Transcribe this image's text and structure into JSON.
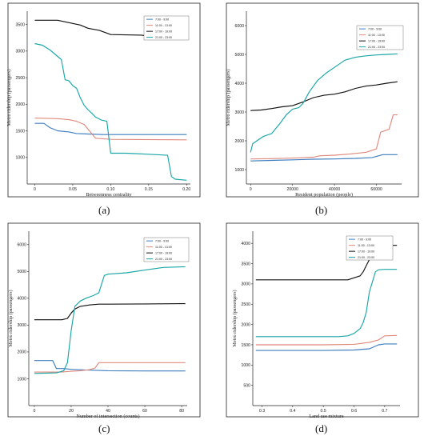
{
  "panel_letters": [
    "(a)",
    "(b)",
    "(c)",
    "(d)"
  ],
  "legend": [
    "7:00 - 9:00",
    "11:00 - 13:00",
    "17:00 - 19:00",
    "21:00 - 23:00"
  ],
  "colors": {
    "7:00 - 9:00": "#3f7fc0",
    "11:00 - 13:00": "#e08a7e",
    "17:00 - 19:00": "#111111",
    "21:00 - 23:00": "#1aa6a6"
  },
  "chart_data": [
    {
      "type": "line",
      "xlabel": "Betweenness centrality",
      "ylabel": "Metro ridership (passengers)",
      "xlim": [
        -0.01,
        0.205
      ],
      "ylim": [
        500,
        3750
      ],
      "xticks": [
        0,
        0.05,
        0.1,
        0.15,
        0.2
      ],
      "xtick_labels": [
        "0",
        "0.05",
        "0.10",
        "0.15",
        "0.20"
      ],
      "yticks": [
        1000,
        1500,
        2000,
        2500,
        3000,
        3500
      ],
      "series": [
        {
          "name": "7:00 - 9:00",
          "x": [
            0,
            0.012,
            0.02,
            0.03,
            0.045,
            0.055,
            0.07,
            0.09,
            0.12,
            0.2
          ],
          "y": [
            1640,
            1640,
            1560,
            1500,
            1480,
            1450,
            1440,
            1430,
            1430,
            1430
          ]
        },
        {
          "name": "11:00 - 13:00",
          "x": [
            0,
            0.03,
            0.045,
            0.055,
            0.06,
            0.065,
            0.08,
            0.1,
            0.2
          ],
          "y": [
            1740,
            1730,
            1710,
            1680,
            1650,
            1620,
            1360,
            1340,
            1330
          ]
        },
        {
          "name": "17:00 - 19:00",
          "x": [
            0,
            0.03,
            0.05,
            0.06,
            0.07,
            0.085,
            0.1,
            0.14,
            0.16,
            0.2
          ],
          "y": [
            3580,
            3580,
            3520,
            3490,
            3430,
            3390,
            3310,
            3300,
            3270,
            3270
          ]
        },
        {
          "name": "21:00 - 23:00",
          "x": [
            0,
            0.01,
            0.02,
            0.03,
            0.035,
            0.04,
            0.045,
            0.05,
            0.055,
            0.06,
            0.065,
            0.07,
            0.075,
            0.08,
            0.088,
            0.095,
            0.1,
            0.12,
            0.15,
            0.175,
            0.18,
            0.185,
            0.2
          ],
          "y": [
            3140,
            3110,
            3020,
            2900,
            2840,
            2460,
            2440,
            2350,
            2300,
            2120,
            1980,
            1900,
            1830,
            1760,
            1700,
            1680,
            1080,
            1080,
            1060,
            1040,
            640,
            590,
            570
          ]
        }
      ]
    },
    {
      "type": "line",
      "xlabel": "Resident population (people)",
      "ylabel": "Metro ridership (passengers)",
      "xlim": [
        -2000,
        72000
      ],
      "ylim": [
        500,
        6500
      ],
      "xticks": [
        0,
        20000,
        40000,
        60000
      ],
      "yticks": [
        1000,
        2000,
        3000,
        4000,
        5000,
        6000
      ],
      "series": [
        {
          "name": "7:00 - 9:00",
          "x": [
            0,
            10000,
            20000,
            30000,
            40000,
            50000,
            58000,
            63000,
            70000
          ],
          "y": [
            1300,
            1320,
            1340,
            1360,
            1370,
            1390,
            1420,
            1520,
            1520
          ]
        },
        {
          "name": "11:00 - 13:00",
          "x": [
            0,
            10000,
            20000,
            30000,
            33000,
            40000,
            47000,
            55000,
            60000,
            62000,
            64000,
            66000,
            68000,
            70000
          ],
          "y": [
            1370,
            1380,
            1400,
            1430,
            1480,
            1500,
            1540,
            1600,
            1720,
            2300,
            2350,
            2400,
            2900,
            2900
          ]
        },
        {
          "name": "17:00 - 19:00",
          "x": [
            0,
            5000,
            10000,
            15000,
            20000,
            25000,
            30000,
            35000,
            40000,
            45000,
            50000,
            55000,
            60000,
            65000,
            70000
          ],
          "y": [
            3050,
            3070,
            3120,
            3180,
            3220,
            3350,
            3500,
            3580,
            3620,
            3700,
            3820,
            3900,
            3940,
            4000,
            4050
          ]
        },
        {
          "name": "21:00 - 23:00",
          "x": [
            0,
            1000,
            3000,
            6000,
            10000,
            14000,
            17000,
            20000,
            23000,
            25000,
            28000,
            32000,
            36000,
            40000,
            45000,
            50000,
            55000,
            60000,
            65000,
            70000
          ],
          "y": [
            1600,
            1900,
            2000,
            2150,
            2250,
            2600,
            2900,
            3100,
            3150,
            3300,
            3700,
            4100,
            4350,
            4550,
            4800,
            4900,
            4950,
            4980,
            5000,
            5020
          ]
        }
      ]
    },
    {
      "type": "line",
      "xlabel": "Number of intersection (counts)",
      "ylabel": "Metro ridership (passengers)",
      "xlim": [
        -3,
        83
      ],
      "ylim": [
        0,
        6500
      ],
      "xticks": [
        0,
        20,
        40,
        60,
        80
      ],
      "yticks": [
        1000,
        2000,
        3000,
        4000,
        5000,
        6000
      ],
      "series": [
        {
          "name": "7:00 - 9:00",
          "x": [
            0,
            10,
            12,
            16,
            20,
            30,
            40,
            60,
            80,
            82
          ],
          "y": [
            1680,
            1680,
            1380,
            1380,
            1350,
            1320,
            1300,
            1290,
            1290,
            1290
          ]
        },
        {
          "name": "11:00 - 13:00",
          "x": [
            0,
            15,
            20,
            25,
            30,
            33,
            35,
            40,
            60,
            80,
            82
          ],
          "y": [
            1250,
            1250,
            1280,
            1300,
            1340,
            1400,
            1600,
            1600,
            1600,
            1600,
            1600
          ]
        },
        {
          "name": "17:00 - 19:00",
          "x": [
            0,
            15,
            18,
            20,
            22,
            25,
            30,
            35,
            40,
            60,
            80,
            82
          ],
          "y": [
            3200,
            3200,
            3250,
            3450,
            3600,
            3700,
            3750,
            3780,
            3780,
            3790,
            3800,
            3800
          ]
        },
        {
          "name": "21:00 - 23:00",
          "x": [
            0,
            12,
            16,
            18,
            20,
            22,
            25,
            28,
            32,
            35,
            38,
            40,
            50,
            60,
            70,
            80,
            82
          ],
          "y": [
            1200,
            1220,
            1300,
            1600,
            2800,
            3700,
            3900,
            4000,
            4100,
            4200,
            4850,
            4900,
            4950,
            5050,
            5150,
            5170,
            5170
          ]
        }
      ]
    },
    {
      "type": "line",
      "xlabel": "Land use mixture",
      "ylabel": "Metro ridership (passengers)",
      "xlim": [
        0.27,
        0.75
      ],
      "ylim": [
        0,
        4300
      ],
      "xticks": [
        0.3,
        0.4,
        0.5,
        0.6,
        0.7
      ],
      "yticks": [
        500,
        1000,
        1500,
        2000,
        2500,
        3000,
        3500,
        4000
      ],
      "series": [
        {
          "name": "7:00 - 9:00",
          "x": [
            0.28,
            0.4,
            0.5,
            0.6,
            0.65,
            0.68,
            0.7,
            0.74
          ],
          "y": [
            1360,
            1360,
            1360,
            1370,
            1400,
            1500,
            1520,
            1520
          ]
        },
        {
          "name": "11:00 - 13:00",
          "x": [
            0.28,
            0.4,
            0.5,
            0.6,
            0.65,
            0.68,
            0.7,
            0.74
          ],
          "y": [
            1500,
            1500,
            1500,
            1510,
            1560,
            1620,
            1720,
            1730
          ]
        },
        {
          "name": "17:00 - 19:00",
          "x": [
            0.28,
            0.4,
            0.5,
            0.58,
            0.6,
            0.62,
            0.63,
            0.64,
            0.65,
            0.66,
            0.67,
            0.7,
            0.74
          ],
          "y": [
            3100,
            3100,
            3100,
            3100,
            3150,
            3200,
            3300,
            3450,
            3600,
            3900,
            3950,
            3950,
            3950
          ]
        },
        {
          "name": "21:00 - 23:00",
          "x": [
            0.28,
            0.4,
            0.5,
            0.55,
            0.58,
            0.6,
            0.62,
            0.63,
            0.64,
            0.65,
            0.66,
            0.67,
            0.68,
            0.7,
            0.74
          ],
          "y": [
            1700,
            1700,
            1700,
            1700,
            1720,
            1780,
            1900,
            2050,
            2300,
            2800,
            3050,
            3300,
            3350,
            3360,
            3360
          ]
        }
      ]
    }
  ]
}
